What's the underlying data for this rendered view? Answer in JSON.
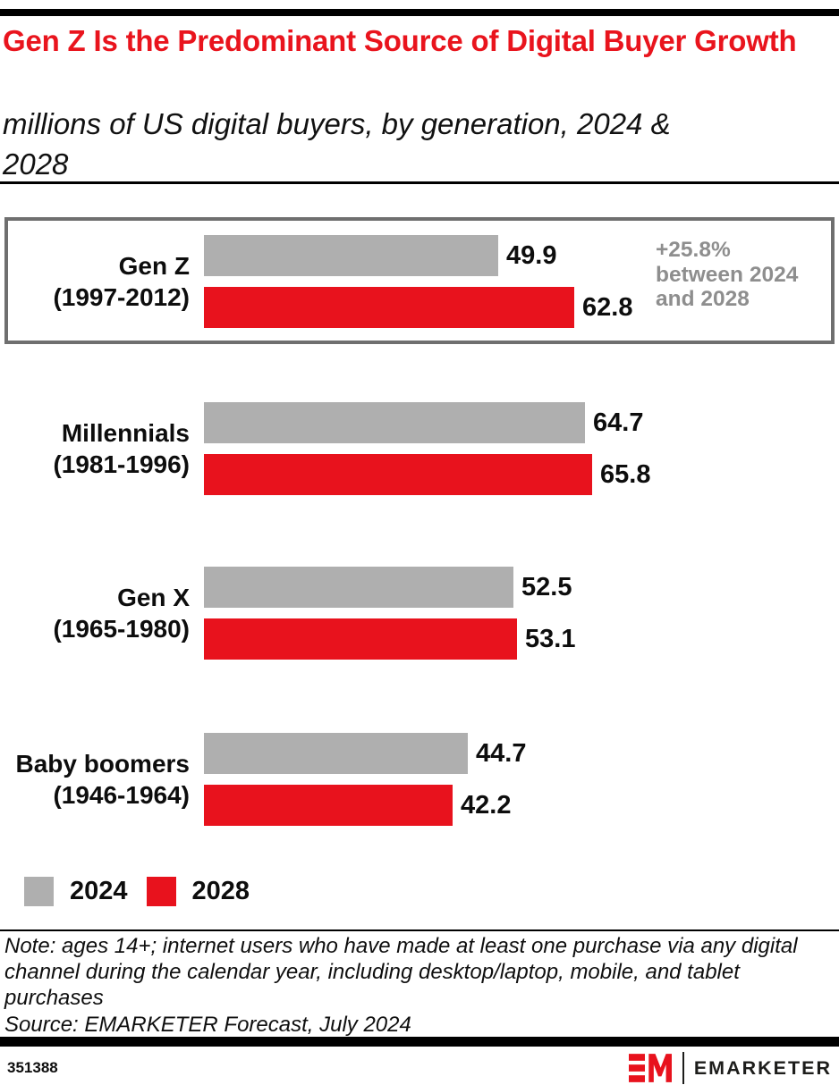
{
  "header": {
    "title": "Gen Z Is the Predominant Source of Digital Buyer Growth",
    "subtitle": "millions of US digital buyers, by generation, 2024 & 2028"
  },
  "chart_data": {
    "type": "bar",
    "orientation": "horizontal",
    "title": "Gen Z Is the Predominant Source of Digital Buyer Growth",
    "unit_label": "millions of US digital buyers, by generation, 2024 & 2028",
    "categories": [
      "Gen Z (1997-2012)",
      "Millennials (1981-1996)",
      "Gen X (1965-1980)",
      "Baby boomers (1946-1964)"
    ],
    "series": [
      {
        "name": "2024",
        "color": "#AFAFAF",
        "values": [
          49.9,
          64.7,
          52.5,
          44.7
        ]
      },
      {
        "name": "2028",
        "color": "#E8121D",
        "values": [
          62.8,
          65.8,
          53.1,
          42.2
        ]
      }
    ],
    "xlim": [
      0,
      70
    ],
    "grid": false,
    "legend_position": "bottom-left",
    "groups": [
      {
        "label": "Gen Z",
        "years": "(1997-2012)",
        "value_2024": 49.9,
        "value_2028": 62.8,
        "highlighted": true
      },
      {
        "label": "Millennials",
        "years": "(1981-1996)",
        "value_2024": 64.7,
        "value_2028": 65.8,
        "highlighted": false
      },
      {
        "label": "Gen X",
        "years": "(1965-1980)",
        "value_2024": 52.5,
        "value_2028": 53.1,
        "highlighted": false
      },
      {
        "label": "Baby boomers",
        "years": "(1946-1964)",
        "value_2024": 44.7,
        "value_2028": 42.2,
        "highlighted": false
      }
    ],
    "annotation": {
      "lines": [
        "+25.8%",
        "between 2024",
        "and 2028"
      ],
      "color": "#8E8E8E",
      "applies_to": "Gen Z (1997-2012)"
    }
  },
  "legend": {
    "items": [
      {
        "label": "2024",
        "color": "#AFAFAF"
      },
      {
        "label": "2028",
        "color": "#E8121D"
      }
    ]
  },
  "notes": {
    "note": "Note: ages 14+; internet users who have made at least one purchase via any digital channel during the calendar year, including desktop/laptop, mobile, and tablet purchases",
    "source": "Source: EMARKETER Forecast, July 2024"
  },
  "footer": {
    "chart_id": "351388",
    "brand": "EMARKETER",
    "accent_color": "#E8121D"
  }
}
